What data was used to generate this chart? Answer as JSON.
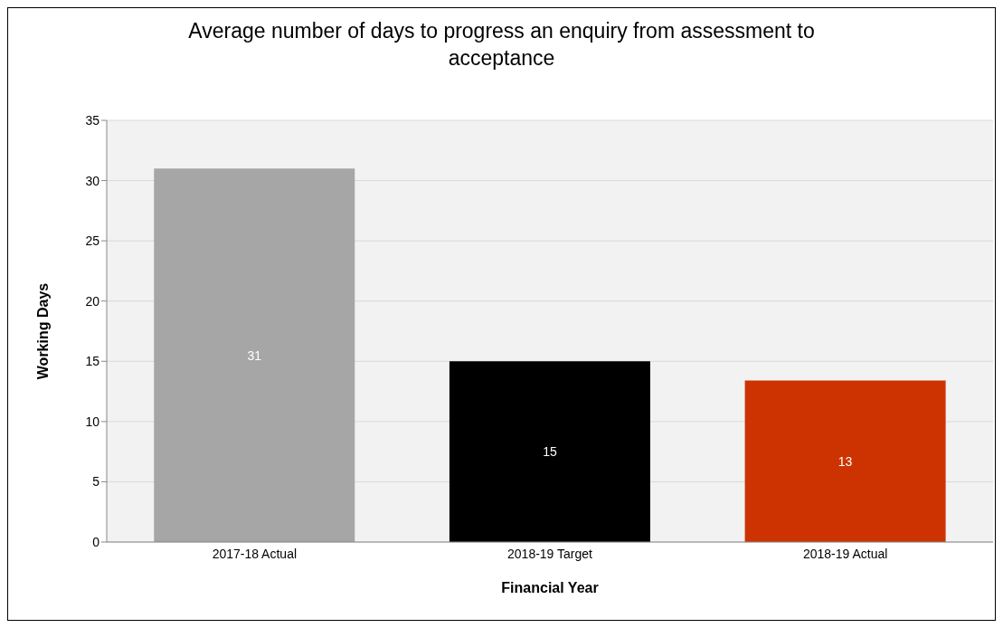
{
  "chart_data": {
    "type": "bar",
    "title": "Average number of days to progress an enquiry from assessment to acceptance",
    "xlabel": "Financial Year",
    "ylabel": "Working Days",
    "categories": [
      "2017-18 Actual",
      "2018-19 Target",
      "2018-19 Actual"
    ],
    "values": [
      31,
      15,
      13.4
    ],
    "value_labels": [
      "31",
      "15",
      "13"
    ],
    "colors": [
      "#a6a6a6",
      "#000000",
      "#cc3300"
    ],
    "ylim": [
      0,
      35
    ],
    "yticks": [
      0,
      5,
      10,
      15,
      20,
      25,
      30,
      35
    ],
    "grid": "y"
  }
}
